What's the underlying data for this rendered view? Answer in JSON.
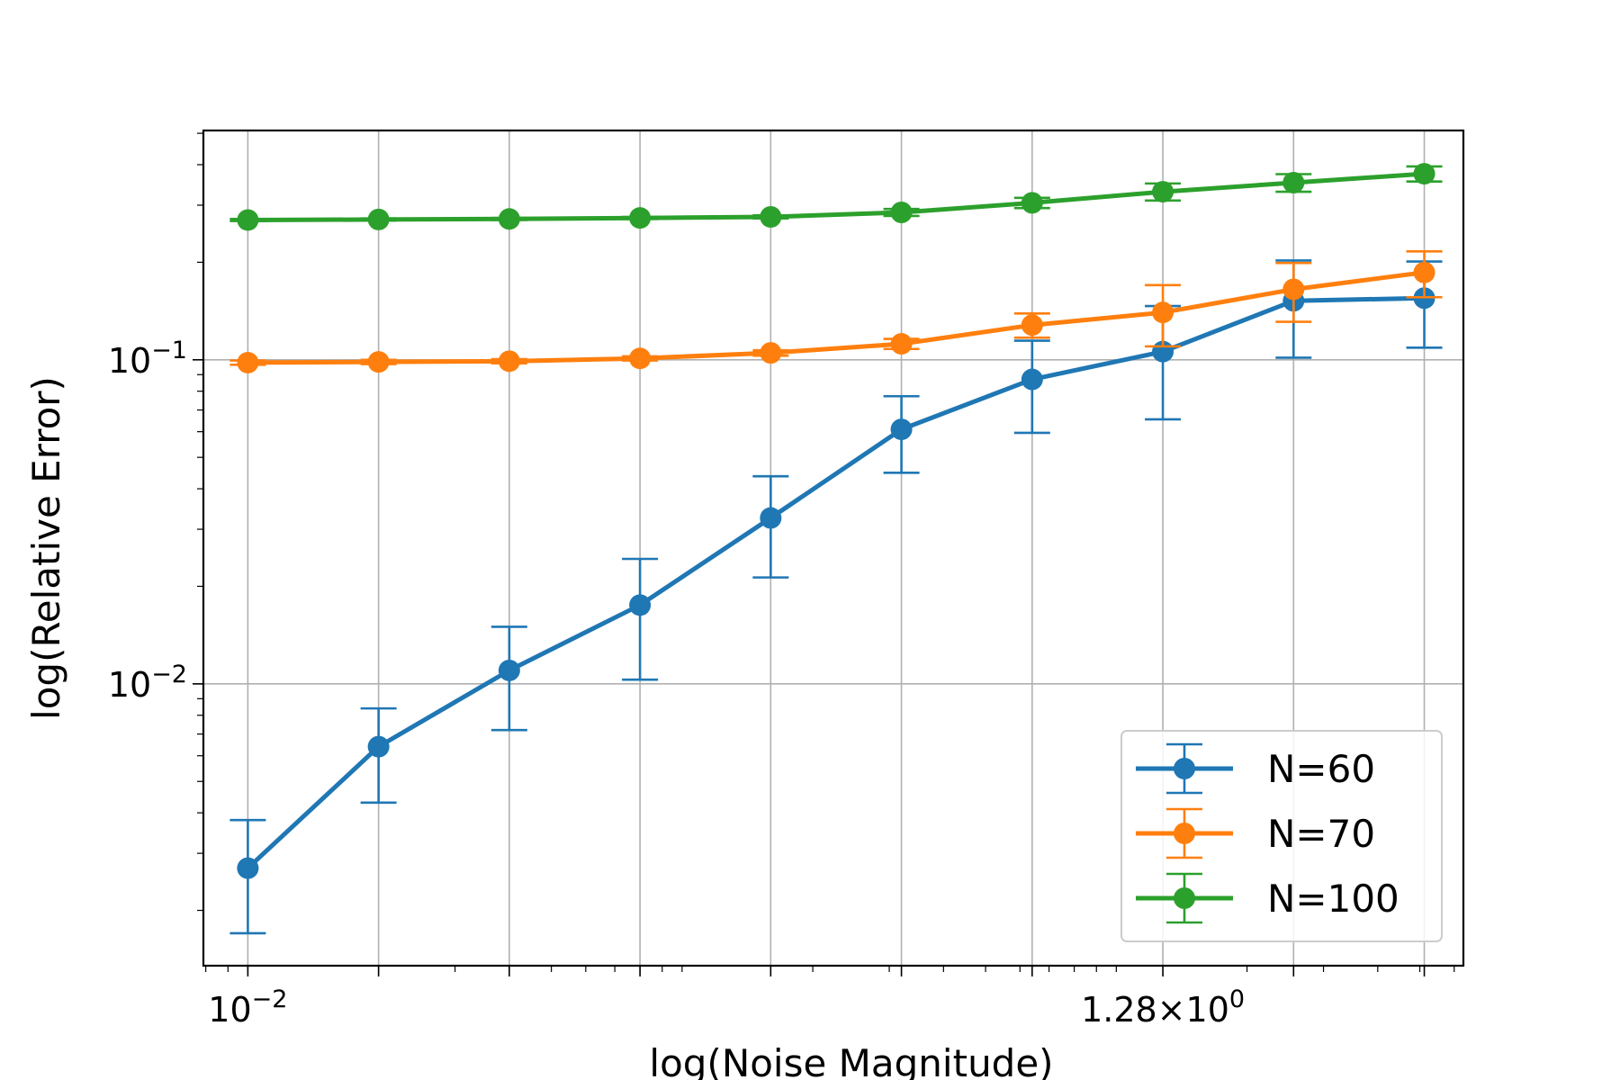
{
  "chart_data": {
    "type": "line",
    "title": "",
    "xlabel": "log(Noise Magnitude)",
    "ylabel": "log(Relative Error)",
    "x_scale": "log",
    "y_scale": "log",
    "x_tick_labels": [
      {
        "base": "10",
        "exp": "−2",
        "value": 0.01
      },
      {
        "base": "1.28×10",
        "exp": "0",
        "value": 1.28
      }
    ],
    "y_tick_labels": [
      {
        "base": "10",
        "exp": "−2",
        "value": 0.01
      },
      {
        "base": "10",
        "exp": "−1",
        "value": 0.1
      }
    ],
    "x": [
      0.01,
      0.02,
      0.04,
      0.08,
      0.16,
      0.32,
      0.64,
      1.28,
      2.56,
      5.12
    ],
    "xlim": [
      0.0079,
      6.3
    ],
    "ylim": [
      0.00135,
      0.51
    ],
    "grid": true,
    "legend_position": "lower right",
    "series": [
      {
        "name": "N=60",
        "color": "#1f77b4",
        "values": [
          0.0027,
          0.0064,
          0.011,
          0.0175,
          0.0325,
          0.061,
          0.087,
          0.106,
          0.152,
          0.155
        ],
        "err_low": [
          0.0017,
          0.0043,
          0.0072,
          0.0103,
          0.0213,
          0.0448,
          0.0595,
          0.0655,
          0.1015,
          0.109
        ],
        "err_high": [
          0.0038,
          0.0084,
          0.015,
          0.0243,
          0.0437,
          0.0772,
          0.1145,
          0.1465,
          0.2025,
          0.201
        ]
      },
      {
        "name": "N=70",
        "color": "#ff7f0e",
        "values": [
          0.098,
          0.0985,
          0.099,
          0.101,
          0.105,
          0.112,
          0.128,
          0.14,
          0.165,
          0.186
        ],
        "err_low": [
          0.0965,
          0.097,
          0.0975,
          0.0995,
          0.103,
          0.108,
          0.117,
          0.11,
          0.131,
          0.156
        ],
        "err_high": [
          0.0995,
          0.1,
          0.1005,
          0.1025,
          0.107,
          0.116,
          0.139,
          0.17,
          0.199,
          0.216
        ]
      },
      {
        "name": "N=100",
        "color": "#2ca02c",
        "values": [
          0.27,
          0.271,
          0.272,
          0.274,
          0.276,
          0.285,
          0.305,
          0.33,
          0.352,
          0.375
        ],
        "err_low": [
          0.268,
          0.269,
          0.27,
          0.272,
          0.273,
          0.278,
          0.294,
          0.31,
          0.33,
          0.355
        ],
        "err_high": [
          0.272,
          0.273,
          0.274,
          0.276,
          0.279,
          0.292,
          0.316,
          0.35,
          0.374,
          0.395
        ]
      }
    ]
  }
}
